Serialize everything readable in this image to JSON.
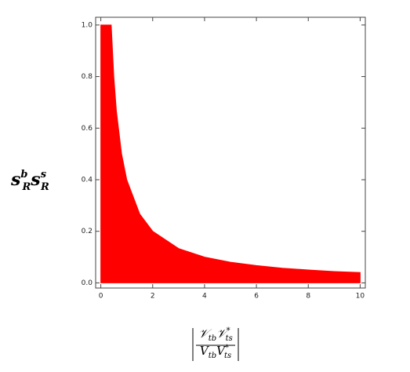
{
  "chart_data": {
    "type": "area",
    "ylabel": {
      "terms": [
        {
          "base": "s",
          "sup": "b",
          "sub": "R"
        },
        {
          "base": "s",
          "sup": "s",
          "sub": "R"
        }
      ]
    },
    "xlabel": {
      "numerator": [
        {
          "base": "𝒱",
          "sub": "tb"
        },
        {
          "base": "𝒱",
          "sub": "ts",
          "sup": "*"
        }
      ],
      "denominator": [
        {
          "base": "V",
          "sub": "tb"
        },
        {
          "base": "V",
          "sub": "ts",
          "sup": "*"
        }
      ]
    },
    "x": [
      0,
      0.2,
      0.4,
      0.5,
      0.6,
      0.8,
      1,
      1.5,
      2,
      3,
      4,
      5,
      6,
      7,
      8,
      9,
      10
    ],
    "values": [
      1,
      1,
      1,
      0.8,
      0.667,
      0.5,
      0.4,
      0.267,
      0.2,
      0.133,
      0.1,
      0.08,
      0.067,
      0.057,
      0.05,
      0.044,
      0.04
    ],
    "color": "#ff0000",
    "xlim": [
      -0.2,
      10.2
    ],
    "ylim": [
      -0.02,
      1.03
    ],
    "xticks": [
      0,
      2,
      4,
      6,
      8,
      10
    ],
    "yticks": [
      {
        "value": 0,
        "label": "0.0"
      },
      0.2,
      0.4,
      0.6,
      0.8,
      {
        "value": 1,
        "label": "1.0"
      }
    ]
  }
}
